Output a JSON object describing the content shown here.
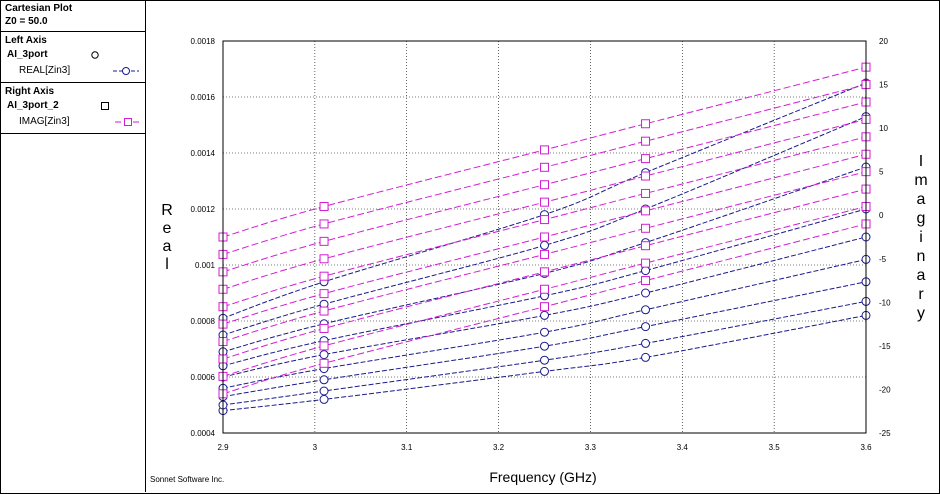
{
  "legend": {
    "title": "Cartesian Plot",
    "z0": "Z0 = 50.0",
    "left_axis": {
      "heading": "Left Axis",
      "file": "AI_3port",
      "trace_label": "REAL[Zin3]"
    },
    "right_axis": {
      "heading": "Right Axis",
      "file": "AI_3port_2",
      "trace_label": "IMAG[Zin3]"
    }
  },
  "credit": "Sonnet Software Inc.",
  "colors": {
    "real": "#1a1a8c",
    "imag": "#d21ed2",
    "grid": "#000000",
    "background": "#ffffff"
  },
  "chart_data": {
    "type": "line",
    "title": "",
    "xlabel": "Frequency (GHz)",
    "ylabel_left": "Real",
    "ylabel_right": "Imaginary",
    "xlim": [
      2.9,
      3.6
    ],
    "ylim_left": [
      0.0004,
      0.0018
    ],
    "ylim_right": [
      -25,
      20
    ],
    "x_ticks": [
      "2.9",
      "3",
      "3.1",
      "3.2",
      "3.3",
      "3.4",
      "3.5",
      "3.6"
    ],
    "y_left_ticks": [
      "0.0004",
      "0.0006",
      "0.0008",
      "0.001",
      "0.0012",
      "0.0014",
      "0.0016",
      "0.0018"
    ],
    "y_right_ticks": [
      "-25",
      "-20",
      "-15",
      "-10",
      "-5",
      "0",
      "5",
      "10",
      "15",
      "20"
    ],
    "grid": true,
    "series_left": [
      {
        "marker": "circle",
        "x": [
          2.9,
          3.01,
          3.25,
          3.36,
          3.6
        ],
        "y": [
          0.00048,
          0.00052,
          0.00062,
          0.00067,
          0.00082
        ]
      },
      {
        "marker": "circle",
        "x": [
          2.9,
          3.01,
          3.25,
          3.36,
          3.6
        ],
        "y": [
          0.0005,
          0.00055,
          0.00066,
          0.00072,
          0.00087
        ]
      },
      {
        "marker": "circle",
        "x": [
          2.9,
          3.01,
          3.25,
          3.36,
          3.6
        ],
        "y": [
          0.00053,
          0.00059,
          0.00071,
          0.00078,
          0.00094
        ]
      },
      {
        "marker": "circle",
        "x": [
          2.9,
          3.01,
          3.25,
          3.36,
          3.6
        ],
        "y": [
          0.00056,
          0.00063,
          0.00076,
          0.00084,
          0.00102
        ]
      },
      {
        "marker": "circle",
        "x": [
          2.9,
          3.01,
          3.25,
          3.36,
          3.6
        ],
        "y": [
          0.0006,
          0.00068,
          0.00082,
          0.0009,
          0.0011
        ]
      },
      {
        "marker": "circle",
        "x": [
          2.9,
          3.01,
          3.25,
          3.36,
          3.6
        ],
        "y": [
          0.00064,
          0.00073,
          0.00089,
          0.00098,
          0.0012
        ]
      },
      {
        "marker": "circle",
        "x": [
          2.9,
          3.01,
          3.25,
          3.36,
          3.6
        ],
        "y": [
          0.00069,
          0.00079,
          0.00097,
          0.00108,
          0.00135
        ]
      },
      {
        "marker": "circle",
        "x": [
          2.9,
          3.01,
          3.25,
          3.36,
          3.6
        ],
        "y": [
          0.00075,
          0.00086,
          0.00107,
          0.0012,
          0.00153
        ]
      },
      {
        "marker": "circle",
        "x": [
          2.9,
          3.01,
          3.25,
          3.36,
          3.6
        ],
        "y": [
          0.00081,
          0.00094,
          0.00118,
          0.00133,
          0.00165
        ]
      }
    ],
    "series_right": [
      {
        "marker": "square",
        "x": [
          2.9,
          3.01,
          3.25,
          3.36,
          3.6
        ],
        "y": [
          -20.5,
          -17.0,
          -10.5,
          -7.5,
          -1.0
        ]
      },
      {
        "marker": "square",
        "x": [
          2.9,
          3.01,
          3.25,
          3.36,
          3.6
        ],
        "y": [
          -18.5,
          -15.0,
          -8.5,
          -5.5,
          1.0
        ]
      },
      {
        "marker": "square",
        "x": [
          2.9,
          3.01,
          3.25,
          3.36,
          3.6
        ],
        "y": [
          -16.5,
          -13.0,
          -6.5,
          -3.5,
          3.0
        ]
      },
      {
        "marker": "square",
        "x": [
          2.9,
          3.01,
          3.25,
          3.36,
          3.6
        ],
        "y": [
          -14.5,
          -11.0,
          -4.5,
          -1.5,
          5.0
        ]
      },
      {
        "marker": "square",
        "x": [
          2.9,
          3.01,
          3.25,
          3.36,
          3.6
        ],
        "y": [
          -12.5,
          -9.0,
          -2.5,
          0.5,
          7.0
        ]
      },
      {
        "marker": "square",
        "x": [
          2.9,
          3.01,
          3.25,
          3.36,
          3.6
        ],
        "y": [
          -10.5,
          -7.0,
          -0.5,
          2.5,
          9.0
        ]
      },
      {
        "marker": "square",
        "x": [
          2.9,
          3.01,
          3.25,
          3.36,
          3.6
        ],
        "y": [
          -8.5,
          -5.0,
          1.5,
          4.5,
          11.0
        ]
      },
      {
        "marker": "square",
        "x": [
          2.9,
          3.01,
          3.25,
          3.36,
          3.6
        ],
        "y": [
          -6.5,
          -3.0,
          3.5,
          6.5,
          13.0
        ]
      },
      {
        "marker": "square",
        "x": [
          2.9,
          3.01,
          3.25,
          3.36,
          3.6
        ],
        "y": [
          -4.5,
          -1.0,
          5.5,
          8.5,
          15.0
        ]
      },
      {
        "marker": "square",
        "x": [
          2.9,
          3.01,
          3.25,
          3.36,
          3.6
        ],
        "y": [
          -2.5,
          1.0,
          7.5,
          10.5,
          17.0
        ]
      }
    ]
  }
}
